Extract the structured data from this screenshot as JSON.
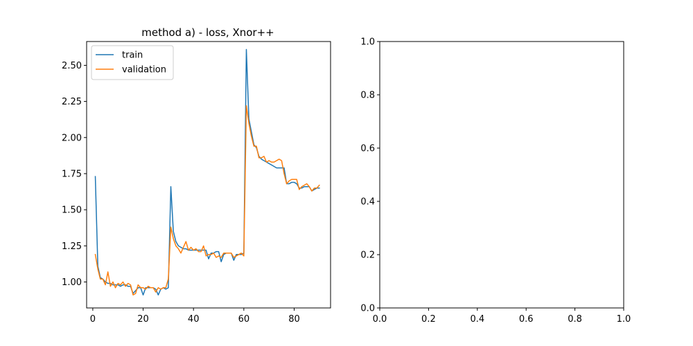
{
  "chart_data": [
    {
      "type": "line",
      "title": "method a) - loss, Xnor++",
      "xlabel": "",
      "ylabel": "",
      "xlim": [
        -2.45,
        94.45
      ],
      "ylim": [
        0.82,
        2.665
      ],
      "xticks": [
        0,
        20,
        40,
        60,
        80
      ],
      "yticks": [
        1.0,
        1.25,
        1.5,
        1.75,
        2.0,
        2.25,
        2.5
      ],
      "grid": false,
      "legend": {
        "position": "top-left"
      },
      "series": [
        {
          "name": "train",
          "color": "#1f77b4",
          "x": [
            1,
            2,
            3,
            4,
            5,
            6,
            7,
            8,
            9,
            10,
            11,
            12,
            13,
            14,
            15,
            16,
            17,
            18,
            19,
            20,
            21,
            22,
            23,
            24,
            25,
            26,
            27,
            28,
            29,
            30,
            31,
            32,
            33,
            34,
            35,
            36,
            37,
            38,
            39,
            40,
            41,
            42,
            43,
            44,
            45,
            46,
            47,
            48,
            49,
            50,
            51,
            52,
            53,
            54,
            55,
            56,
            57,
            58,
            59,
            60,
            61,
            62,
            63,
            64,
            65,
            66,
            67,
            68,
            69,
            70,
            71,
            72,
            73,
            74,
            75,
            76,
            77,
            78,
            79,
            80,
            81,
            82,
            83,
            84,
            85,
            86,
            87,
            88,
            89,
            90
          ],
          "values": [
            1.73,
            1.11,
            1.03,
            1.02,
            1.0,
            0.99,
            0.99,
            0.98,
            0.98,
            0.98,
            0.97,
            0.98,
            0.98,
            0.97,
            0.97,
            0.92,
            0.94,
            0.96,
            0.96,
            0.91,
            0.96,
            0.96,
            0.96,
            0.96,
            0.95,
            0.91,
            0.95,
            0.96,
            0.95,
            0.96,
            1.66,
            1.35,
            1.28,
            1.25,
            1.24,
            1.23,
            1.23,
            1.22,
            1.22,
            1.22,
            1.22,
            1.22,
            1.22,
            1.22,
            1.22,
            1.16,
            1.2,
            1.2,
            1.21,
            1.21,
            1.14,
            1.19,
            1.2,
            1.2,
            1.2,
            1.15,
            1.19,
            1.19,
            1.19,
            1.2,
            2.61,
            2.13,
            2.04,
            1.95,
            1.93,
            1.87,
            1.85,
            1.84,
            1.83,
            1.82,
            1.81,
            1.8,
            1.79,
            1.79,
            1.79,
            1.79,
            1.68,
            1.68,
            1.69,
            1.69,
            1.68,
            1.65,
            1.65,
            1.66,
            1.66,
            1.66,
            1.63,
            1.64,
            1.65,
            1.65
          ]
        },
        {
          "name": "validation",
          "color": "#ff7f0e",
          "x": [
            1,
            2,
            3,
            4,
            5,
            6,
            7,
            8,
            9,
            10,
            11,
            12,
            13,
            14,
            15,
            16,
            17,
            18,
            19,
            20,
            21,
            22,
            23,
            24,
            25,
            26,
            27,
            28,
            29,
            30,
            31,
            32,
            33,
            34,
            35,
            36,
            37,
            38,
            39,
            40,
            41,
            42,
            43,
            44,
            45,
            46,
            47,
            48,
            49,
            50,
            51,
            52,
            53,
            54,
            55,
            56,
            57,
            58,
            59,
            60,
            61,
            62,
            63,
            64,
            65,
            66,
            67,
            68,
            69,
            70,
            71,
            72,
            73,
            74,
            75,
            76,
            77,
            78,
            79,
            80,
            81,
            82,
            83,
            84,
            85,
            86,
            87,
            88,
            89,
            90
          ],
          "values": [
            1.19,
            1.09,
            1.02,
            1.02,
            0.98,
            1.07,
            0.97,
            1.0,
            0.96,
            0.99,
            0.98,
            1.0,
            0.97,
            0.99,
            0.98,
            0.91,
            0.92,
            0.98,
            0.96,
            0.96,
            0.95,
            0.97,
            0.96,
            0.96,
            0.93,
            0.96,
            0.95,
            0.96,
            0.96,
            1.02,
            1.38,
            1.3,
            1.25,
            1.23,
            1.2,
            1.24,
            1.28,
            1.22,
            1.24,
            1.22,
            1.23,
            1.21,
            1.21,
            1.25,
            1.18,
            1.19,
            1.19,
            1.2,
            1.17,
            1.18,
            1.17,
            1.2,
            1.2,
            1.2,
            1.2,
            1.17,
            1.18,
            1.19,
            1.2,
            1.18,
            2.22,
            2.1,
            2.01,
            1.94,
            1.94,
            1.86,
            1.86,
            1.87,
            1.83,
            1.84,
            1.83,
            1.83,
            1.84,
            1.85,
            1.84,
            1.75,
            1.68,
            1.7,
            1.71,
            1.71,
            1.71,
            1.64,
            1.66,
            1.67,
            1.68,
            1.66,
            1.63,
            1.65,
            1.65,
            1.67
          ]
        }
      ]
    },
    {
      "type": "line",
      "title": "",
      "xlim": [
        0.0,
        1.0
      ],
      "ylim": [
        0.0,
        1.0
      ],
      "xticks": [
        0.0,
        0.2,
        0.4,
        0.6,
        0.8,
        1.0
      ],
      "yticks": [
        0.0,
        0.2,
        0.4,
        0.6,
        0.8,
        1.0
      ],
      "xtick_labels": [
        "0.0",
        "0.2",
        "0.4",
        "0.6",
        "0.8",
        "1.0"
      ],
      "ytick_labels": [
        "0.0",
        "0.2",
        "0.4",
        "0.6",
        "0.8",
        "1.0"
      ],
      "grid": false,
      "series": []
    }
  ]
}
